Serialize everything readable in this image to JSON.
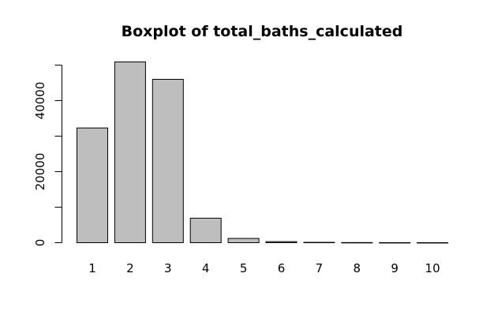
{
  "chart_data": {
    "type": "bar",
    "title": "Boxplot of total_baths_calculated",
    "xlabel": "",
    "ylabel": "",
    "categories": [
      "1",
      "2",
      "3",
      "4",
      "5",
      "6",
      "7",
      "8",
      "9",
      "10"
    ],
    "values": [
      32300,
      50900,
      46000,
      6900,
      1200,
      300,
      100,
      40,
      20,
      10
    ],
    "ylim": [
      0,
      50000
    ],
    "yticks": [
      0,
      10000,
      20000,
      30000,
      40000,
      50000
    ],
    "ytick_labels": [
      "0",
      "",
      "20000",
      "",
      "40000",
      ""
    ],
    "bar_fill": "#bebebe",
    "bar_stroke": "#000000",
    "grid": false,
    "legend": "none"
  }
}
